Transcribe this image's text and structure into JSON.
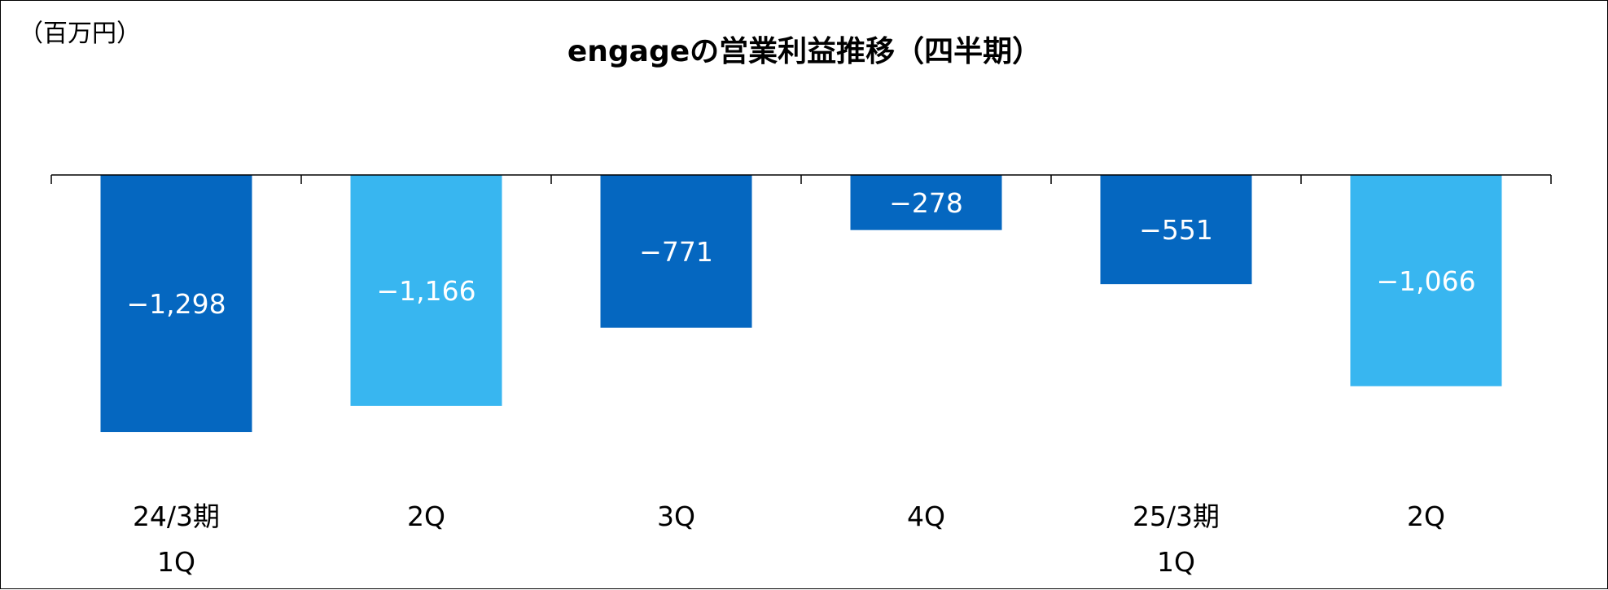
{
  "chart_data": {
    "type": "bar",
    "title": "engageの営業利益推移（四半期）",
    "unit_label": "（百万円）",
    "categories": [
      [
        "24/3期",
        "1Q"
      ],
      [
        "2Q"
      ],
      [
        "3Q"
      ],
      [
        "4Q"
      ],
      [
        "25/3期",
        "1Q"
      ],
      [
        "2Q"
      ]
    ],
    "values": [
      -1298,
      -1166,
      -771,
      -278,
      -551,
      -1066
    ],
    "value_labels": [
      "−1,298",
      "−1,166",
      "−771",
      "−278",
      "−551",
      "−1,066"
    ],
    "bar_colors": [
      "#0567c0",
      "#38b6f0",
      "#0567c0",
      "#0567c0",
      "#0567c0",
      "#38b6f0"
    ],
    "label_color": "#ffffff",
    "ylim": [
      -1500,
      0
    ],
    "grid": false,
    "legend": "none"
  }
}
